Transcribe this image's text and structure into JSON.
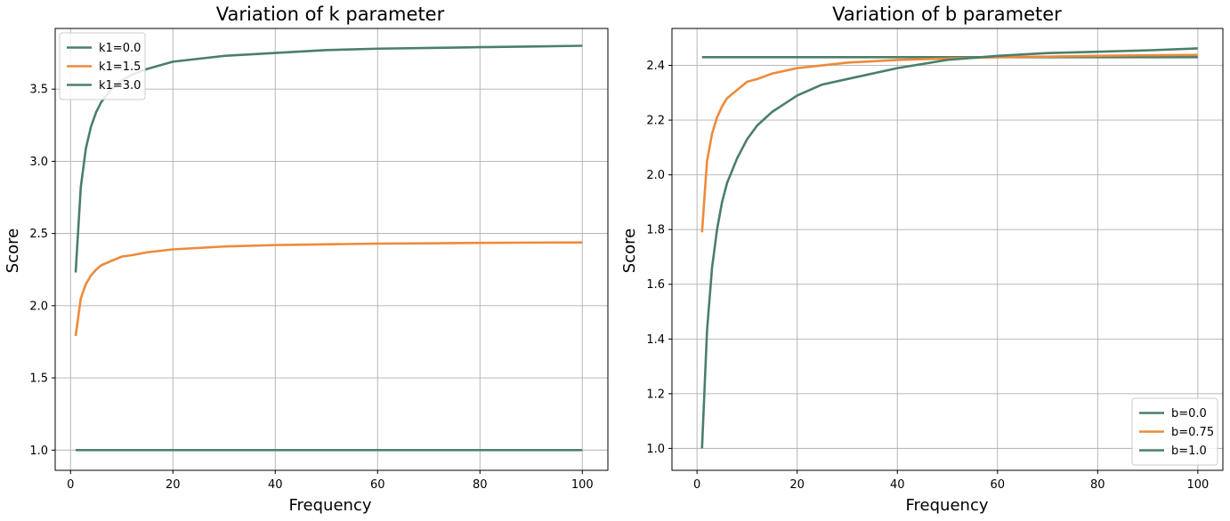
{
  "chart_data": [
    {
      "type": "line",
      "title": "Variation of k parameter",
      "xlabel": "Frequency",
      "ylabel": "Score",
      "xlim": [
        -3,
        105
      ],
      "ylim": [
        0.86,
        3.92
      ],
      "xticks": [
        0,
        20,
        40,
        60,
        80,
        100
      ],
      "yticks": [
        1.0,
        1.5,
        2.0,
        2.5,
        3.0,
        3.5
      ],
      "ytick_labels": [
        "1.0",
        "1.5",
        "2.0",
        "2.5",
        "3.0",
        "3.5"
      ],
      "grid": true,
      "legend_placement": "top-left",
      "x": [
        1,
        2,
        3,
        4,
        5,
        6,
        8,
        10,
        12,
        15,
        20,
        25,
        30,
        40,
        50,
        60,
        70,
        80,
        90,
        100
      ],
      "series": [
        {
          "name": "k1=0.0",
          "color": "#4a7f6a",
          "values": [
            1.0,
            1.0,
            1.0,
            1.0,
            1.0,
            1.0,
            1.0,
            1.0,
            1.0,
            1.0,
            1.0,
            1.0,
            1.0,
            1.0,
            1.0,
            1.0,
            1.0,
            1.0,
            1.0,
            1.0
          ]
        },
        {
          "name": "k1=1.5",
          "color": "#ee8a3a",
          "values": [
            1.79,
            2.05,
            2.15,
            2.21,
            2.25,
            2.28,
            2.31,
            2.34,
            2.35,
            2.37,
            2.39,
            2.4,
            2.41,
            2.42,
            2.425,
            2.43,
            2.432,
            2.435,
            2.437,
            2.438
          ]
        },
        {
          "name": "k1=3.0",
          "color": "#4a7f6a",
          "values": [
            2.23,
            2.82,
            3.09,
            3.24,
            3.34,
            3.41,
            3.5,
            3.56,
            3.6,
            3.64,
            3.69,
            3.71,
            3.73,
            3.75,
            3.77,
            3.78,
            3.785,
            3.79,
            3.795,
            3.8
          ]
        }
      ]
    },
    {
      "type": "line",
      "title": "Variation of b parameter",
      "xlabel": "Frequency",
      "ylabel": "Score",
      "xlim": [
        -5,
        105
      ],
      "ylim": [
        0.92,
        2.535
      ],
      "xticks": [
        0,
        20,
        40,
        60,
        80,
        100
      ],
      "yticks": [
        1.0,
        1.2,
        1.4,
        1.6,
        1.8,
        2.0,
        2.2,
        2.4
      ],
      "ytick_labels": [
        "1.0",
        "1.2",
        "1.4",
        "1.6",
        "1.8",
        "2.0",
        "2.2",
        "2.4"
      ],
      "grid": true,
      "legend_placement": "lower-right",
      "x": [
        1,
        2,
        3,
        4,
        5,
        6,
        8,
        10,
        12,
        15,
        20,
        25,
        30,
        40,
        50,
        60,
        70,
        80,
        90,
        100
      ],
      "series": [
        {
          "name": "b=0.0",
          "color": "#4a7f6a",
          "values": [
            2.43,
            2.43,
            2.43,
            2.43,
            2.43,
            2.43,
            2.43,
            2.43,
            2.43,
            2.43,
            2.43,
            2.43,
            2.43,
            2.43,
            2.43,
            2.43,
            2.43,
            2.43,
            2.43,
            2.43
          ]
        },
        {
          "name": "b=0.75",
          "color": "#ee8a3a",
          "values": [
            1.79,
            2.05,
            2.15,
            2.21,
            2.25,
            2.28,
            2.31,
            2.34,
            2.35,
            2.37,
            2.39,
            2.4,
            2.41,
            2.42,
            2.425,
            2.43,
            2.432,
            2.435,
            2.437,
            2.438
          ]
        },
        {
          "name": "b=1.0",
          "color": "#4a7f6a",
          "values": [
            1.0,
            1.43,
            1.66,
            1.8,
            1.9,
            1.97,
            2.06,
            2.13,
            2.18,
            2.23,
            2.29,
            2.33,
            2.35,
            2.39,
            2.42,
            2.435,
            2.445,
            2.45,
            2.455,
            2.462
          ]
        }
      ]
    }
  ]
}
